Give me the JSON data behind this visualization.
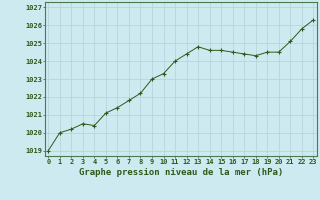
{
  "x": [
    0,
    1,
    2,
    3,
    4,
    5,
    6,
    7,
    8,
    9,
    10,
    11,
    12,
    13,
    14,
    15,
    16,
    17,
    18,
    19,
    20,
    21,
    22,
    23
  ],
  "y": [
    1019.0,
    1020.0,
    1020.2,
    1020.5,
    1020.4,
    1021.1,
    1021.4,
    1021.8,
    1022.2,
    1023.0,
    1023.3,
    1024.0,
    1024.4,
    1024.8,
    1024.6,
    1024.6,
    1024.5,
    1024.4,
    1024.3,
    1024.5,
    1024.5,
    1025.1,
    1025.8,
    1026.3
  ],
  "line_color": "#2d5a1b",
  "marker": "+",
  "marker_size": 3.5,
  "bg_color": "#cdeaf0",
  "grid_color": "#b8d0d8",
  "title": "Graphe pression niveau de la mer (hPa)",
  "ylabel_ticks": [
    1019,
    1020,
    1021,
    1022,
    1023,
    1024,
    1025,
    1026,
    1027
  ],
  "xlim": [
    -0.3,
    23.3
  ],
  "ylim": [
    1018.7,
    1027.3
  ],
  "title_color": "#2d5a1b",
  "title_fontsize": 6.5,
  "tick_fontsize": 5.0,
  "tick_color": "#2d5a1b"
}
